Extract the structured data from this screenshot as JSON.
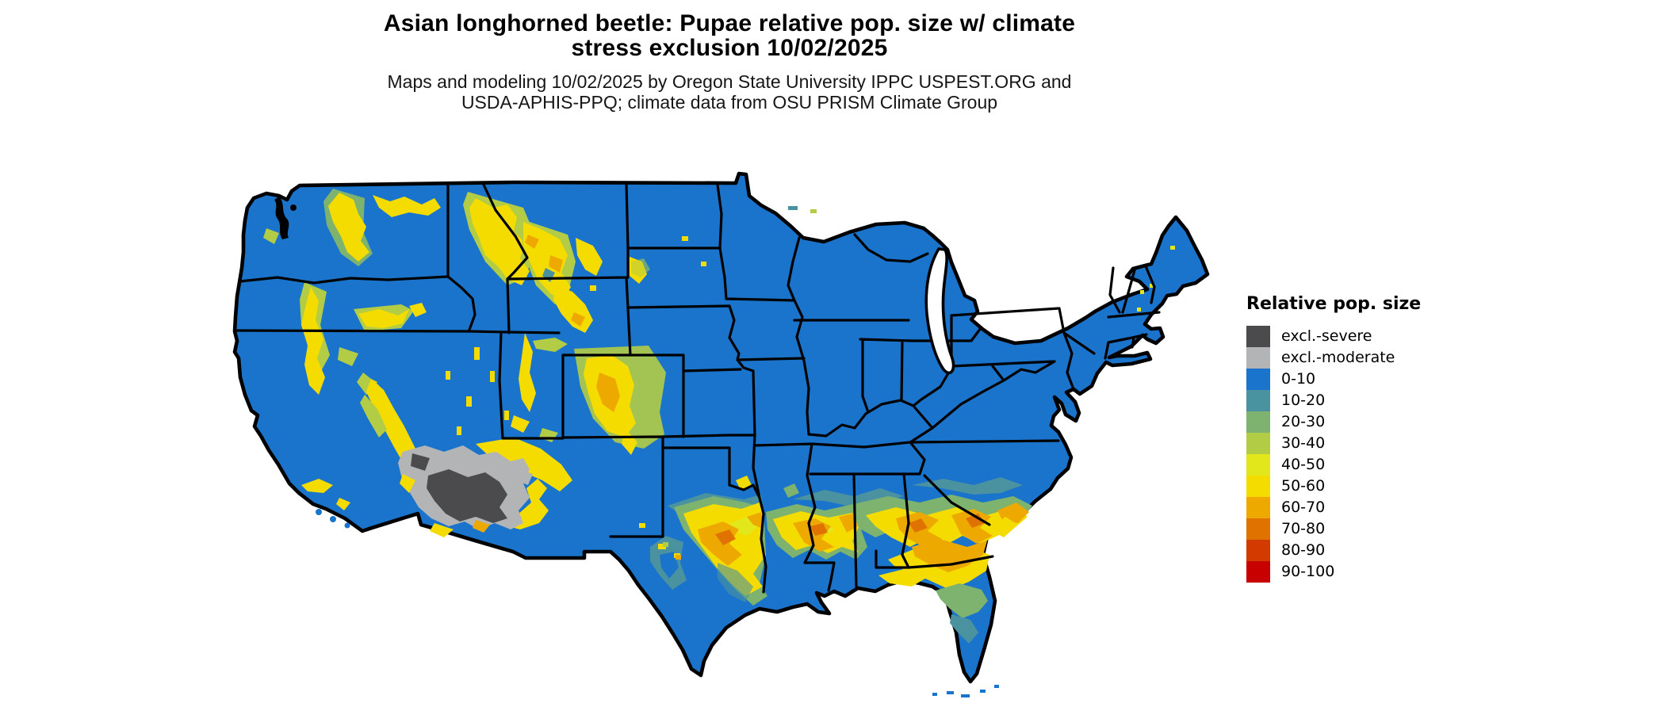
{
  "title": {
    "line1": "Asian longhorned beetle: Pupae relative pop. size w/ climate",
    "line2": "stress exclusion 10/02/2025"
  },
  "subtitle": {
    "line1": "Maps and modeling 10/02/2025 by Oregon State University IPPC USPEST.ORG and",
    "line2": "USDA-APHIS-PPQ; climate data from OSU PRISM Climate Group"
  },
  "legend": {
    "title": "Relative pop. size",
    "items": [
      {
        "label": "excl.-severe",
        "color": "#4b4b4d"
      },
      {
        "label": "excl.-moderate",
        "color": "#b3b4b6"
      },
      {
        "label": "0-10",
        "color": "#1b74cc"
      },
      {
        "label": "10-20",
        "color": "#4b92a0"
      },
      {
        "label": "20-30",
        "color": "#7db36e"
      },
      {
        "label": "30-40",
        "color": "#b2cc45"
      },
      {
        "label": "40-50",
        "color": "#e2e71c"
      },
      {
        "label": "50-60",
        "color": "#f5dc00"
      },
      {
        "label": "60-70",
        "color": "#eda900"
      },
      {
        "label": "70-80",
        "color": "#e07200"
      },
      {
        "label": "80-90",
        "color": "#d23a00"
      },
      {
        "label": "90-100",
        "color": "#c80000"
      }
    ]
  },
  "map": {
    "region": "contiguous United States",
    "base_fill": "#1b74cc",
    "border_color": "#000000",
    "ocean_color": "#ffffff"
  }
}
